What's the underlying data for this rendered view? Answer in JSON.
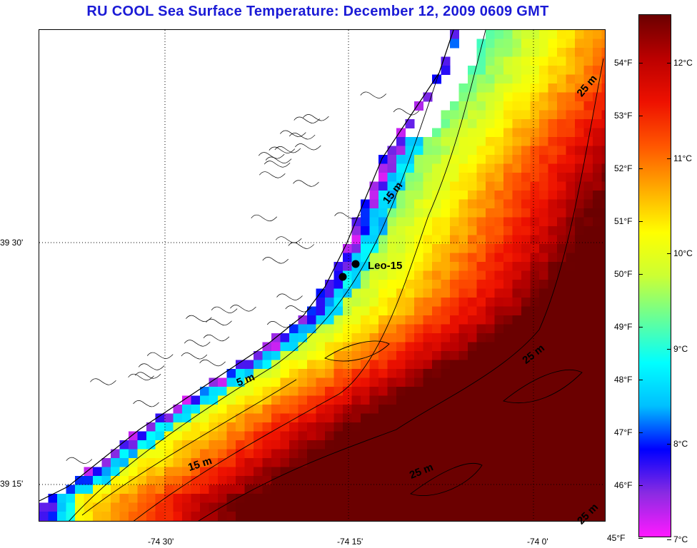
{
  "title": "RU COOL  Sea Surface Temperature:  December 12, 2009 0609 GMT",
  "map": {
    "lat_labels": [
      "39 30'",
      "39 15'"
    ],
    "lon_labels": [
      "-74 30'",
      "-74 15'",
      "-74 0'"
    ],
    "station": {
      "label": "Leo-15"
    },
    "contours": [
      {
        "label": "25 m",
        "rotate": -45
      },
      {
        "label": "15 m",
        "rotate": -55
      },
      {
        "label": "25 m",
        "rotate": -35
      },
      {
        "label": "5 m",
        "rotate": -20
      },
      {
        "label": "15 m",
        "rotate": -15
      },
      {
        "label": "25 m",
        "rotate": -25
      },
      {
        "label": "25 m",
        "rotate": -45
      }
    ]
  },
  "colorbar": {
    "fahrenheit": [
      "54°F",
      "53°F",
      "52°F",
      "51°F",
      "50°F",
      "49°F",
      "48°F",
      "47°F",
      "46°F",
      "45°F"
    ],
    "celsius": [
      "12°C",
      "11°C",
      "10°C",
      "9°C",
      "8°C",
      "7°C"
    ],
    "colors": [
      "#ff1aff",
      "#8a2be2",
      "#0000ff",
      "#00bfff",
      "#00ffff",
      "#66ff99",
      "#ccff33",
      "#ffff00",
      "#ffaa00",
      "#ff5500",
      "#ee1100",
      "#bb0000",
      "#6b0000"
    ]
  },
  "overlays": {
    "land": "#ffffff",
    "missing": "#ffffff",
    "coast_color": "#000000"
  }
}
